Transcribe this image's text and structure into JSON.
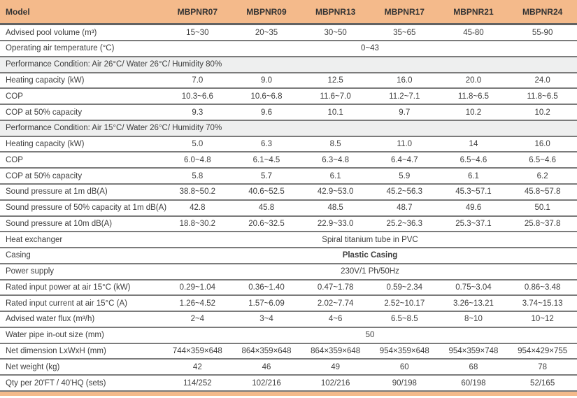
{
  "colors": {
    "header_bg": "#f4ba8b",
    "section_bg": "#eeefef",
    "row_border": "#7b7b7b",
    "header_border": "#636363",
    "text": "#3e3e3e",
    "accent_bar": "#f4ba8b"
  },
  "table": {
    "columns": [
      "Model",
      "MBPNR07",
      "MBPNR09",
      "MBPNR13",
      "MBPNR17",
      "MBPNR21",
      "MBPNR24"
    ],
    "rows": [
      {
        "type": "data",
        "label": "Advised pool volume  (m³)",
        "values": [
          "15~30",
          "20~35",
          "30~50",
          "35~65",
          "45-80",
          "55-90"
        ]
      },
      {
        "type": "span",
        "label": "Operating air temperature (°C)",
        "value": "0~43"
      },
      {
        "type": "section",
        "label": "Performance Condition: Air 26°C/ Water 26°C/ Humidity 80%"
      },
      {
        "type": "data",
        "label": "Heating capacity (kW)",
        "values": [
          "7.0",
          "9.0",
          "12.5",
          "16.0",
          "20.0",
          "24.0"
        ]
      },
      {
        "type": "data",
        "label": "COP",
        "values": [
          "10.3~6.6",
          "10.6~6.8",
          "11.6~7.0",
          "11.2~7.1",
          "11.8~6.5",
          "11.8~6.5"
        ]
      },
      {
        "type": "data",
        "label": "COP at 50% capacity",
        "values": [
          "9.3",
          "9.6",
          "10.1",
          "9.7",
          "10.2",
          "10.2"
        ]
      },
      {
        "type": "section",
        "label": "Performance Condition: Air 15°C/ Water 26°C/ Humidity 70%"
      },
      {
        "type": "data",
        "label": "Heating capacity (kW)",
        "values": [
          "5.0",
          "6.3",
          "8.5",
          "11.0",
          "14",
          "16.0"
        ]
      },
      {
        "type": "data",
        "label": "COP",
        "values": [
          "6.0~4.8",
          "6.1~4.5",
          "6.3~4.8",
          "6.4~4.7",
          "6.5~4.6",
          "6.5~4.6"
        ]
      },
      {
        "type": "data",
        "label": "COP at 50% capacity",
        "values": [
          "5.8",
          "5.7",
          "6.1",
          "5.9",
          "6.1",
          "6.2"
        ]
      },
      {
        "type": "data",
        "label": "Sound pressure at 1m dB(A)",
        "values": [
          "38.8~50.2",
          "40.6~52.5",
          "42.9~53.0",
          "45.2~56.3",
          "45.3~57.1",
          "45.8~57.8"
        ]
      },
      {
        "type": "data",
        "label": "Sound pressure of 50% capacity at 1m dB(A)",
        "values": [
          "42.8",
          "45.8",
          "48.5",
          "48.7",
          "49.6",
          "50.1"
        ]
      },
      {
        "type": "data",
        "label": "Sound pressure at 10m dB(A)",
        "values": [
          "18.8~30.2",
          "20.6~32.5",
          "22.9~33.0",
          "25.2~36.3",
          "25.3~37.1",
          "25.8~37.8"
        ]
      },
      {
        "type": "span",
        "label": "Heat exchanger",
        "value": "Spiral titanium tube in PVC"
      },
      {
        "type": "span",
        "label": "Casing",
        "value": "Plastic Casing",
        "emphasis": true
      },
      {
        "type": "span",
        "label": "Power supply",
        "value": "230V/1 Ph/50Hz"
      },
      {
        "type": "data",
        "label": "Rated input power  at air 15°C (kW)",
        "values": [
          "0.29~1.04",
          "0.36~1.40",
          "0.47~1.78",
          "0.59~2.34",
          "0.75~3.04",
          "0.86~3.48"
        ]
      },
      {
        "type": "data",
        "label": "Rated input current  at air 15°C  (A)",
        "values": [
          "1.26~4.52",
          "1.57~6.09",
          "2.02~7.74",
          "2.52~10.17",
          "3.26~13.21",
          "3.74~15.13"
        ]
      },
      {
        "type": "data",
        "label": "Advised water flux   (m³/h)",
        "values": [
          "2~4",
          "3~4",
          "4~6",
          "6.5~8.5",
          "8~10",
          "10~12"
        ]
      },
      {
        "type": "span",
        "label": "Water pipe in-out size  (mm)",
        "value": "50"
      },
      {
        "type": "data",
        "label": "Net dimension LxWxH (mm)",
        "values": [
          "744×359×648",
          "864×359×648",
          "864×359×648",
          "954×359×648",
          "954×359×748",
          "954×429×755"
        ]
      },
      {
        "type": "data",
        "label": "Net weight   (kg)",
        "values": [
          "42",
          "46",
          "49",
          "60",
          "68",
          "78"
        ]
      },
      {
        "type": "data",
        "label": "Qty per 20'FT / 40'HQ   (sets)",
        "values": [
          "114/252",
          "102/216",
          "102/216",
          "90/198",
          "60/198",
          "52/165"
        ]
      }
    ]
  }
}
